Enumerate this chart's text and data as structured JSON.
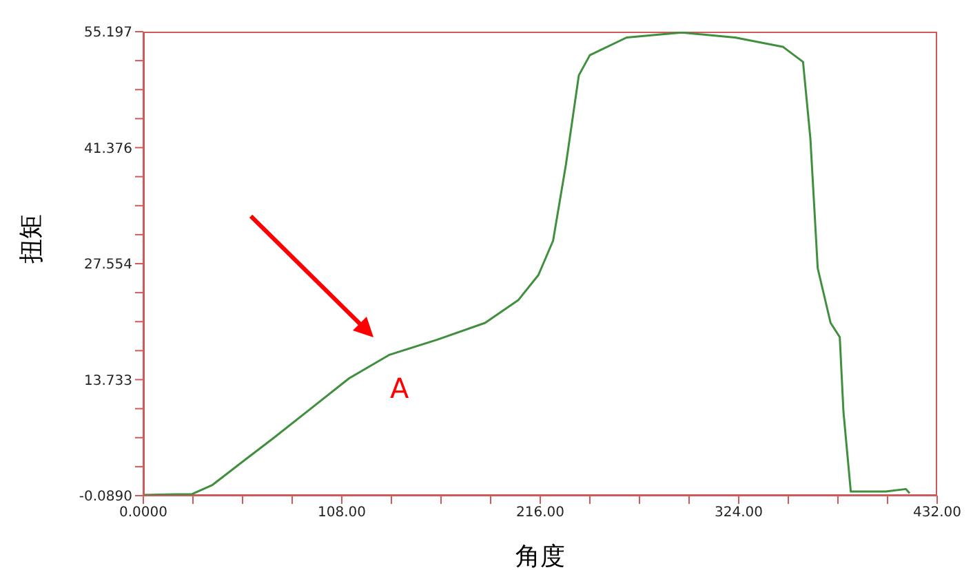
{
  "chart_data": {
    "type": "line",
    "xlabel": "角度",
    "ylabel": "扭矩",
    "x": [
      0,
      26.6,
      37.7,
      52.5,
      71,
      93,
      112,
      134,
      160,
      186,
      204,
      215,
      223,
      230,
      237,
      243,
      263,
      293,
      322,
      348,
      359,
      363,
      367,
      374,
      379,
      381,
      385,
      404,
      415,
      417
    ],
    "series": [
      {
        "color": "#3f8f3f",
        "values": [
          0,
          0.1,
          1.2,
          3.7,
          6.8,
          10.6,
          13.9,
          16.7,
          18.5,
          20.5,
          23.2,
          26.2,
          30.3,
          39.4,
          50,
          52.4,
          54.5,
          55.1,
          54.5,
          53.4,
          51.6,
          42.5,
          27,
          20.5,
          18.8,
          9.9,
          0.4,
          0.4,
          0.7,
          0.2
        ]
      }
    ],
    "xlim": [
      0,
      432
    ],
    "ylim": [
      -0.089,
      55.197
    ],
    "xticks": [
      {
        "value": 0,
        "label": "0.0000"
      },
      {
        "value": 27,
        "label": null
      },
      {
        "value": 54,
        "label": null
      },
      {
        "value": 81,
        "label": null
      },
      {
        "value": 108,
        "label": "108.00"
      },
      {
        "value": 135,
        "label": null
      },
      {
        "value": 162,
        "label": null
      },
      {
        "value": 189,
        "label": null
      },
      {
        "value": 216,
        "label": "216.00"
      },
      {
        "value": 243,
        "label": null
      },
      {
        "value": 270,
        "label": null
      },
      {
        "value": 297,
        "label": null
      },
      {
        "value": 324,
        "label": "324.00"
      },
      {
        "value": 351,
        "label": null
      },
      {
        "value": 378,
        "label": null
      },
      {
        "value": 405,
        "label": null
      },
      {
        "value": 432,
        "label": "432.00"
      }
    ],
    "yticks": [
      {
        "value": -0.089,
        "label": "-0.0890"
      },
      {
        "value": 3.366,
        "label": null
      },
      {
        "value": 6.822,
        "label": null
      },
      {
        "value": 10.277,
        "label": null
      },
      {
        "value": 13.733,
        "label": "13.733"
      },
      {
        "value": 17.188,
        "label": null
      },
      {
        "value": 20.643,
        "label": null
      },
      {
        "value": 24.099,
        "label": null
      },
      {
        "value": 27.554,
        "label": "27.554"
      },
      {
        "value": 31.01,
        "label": null
      },
      {
        "value": 34.465,
        "label": null
      },
      {
        "value": 37.921,
        "label": null
      },
      {
        "value": 41.376,
        "label": "41.376"
      },
      {
        "value": 44.831,
        "label": null
      },
      {
        "value": 48.287,
        "label": null
      },
      {
        "value": 51.742,
        "label": null
      },
      {
        "value": 55.197,
        "label": "55.197"
      }
    ],
    "annotations": [
      "A"
    ],
    "marker": "none",
    "line_style": "solid"
  }
}
